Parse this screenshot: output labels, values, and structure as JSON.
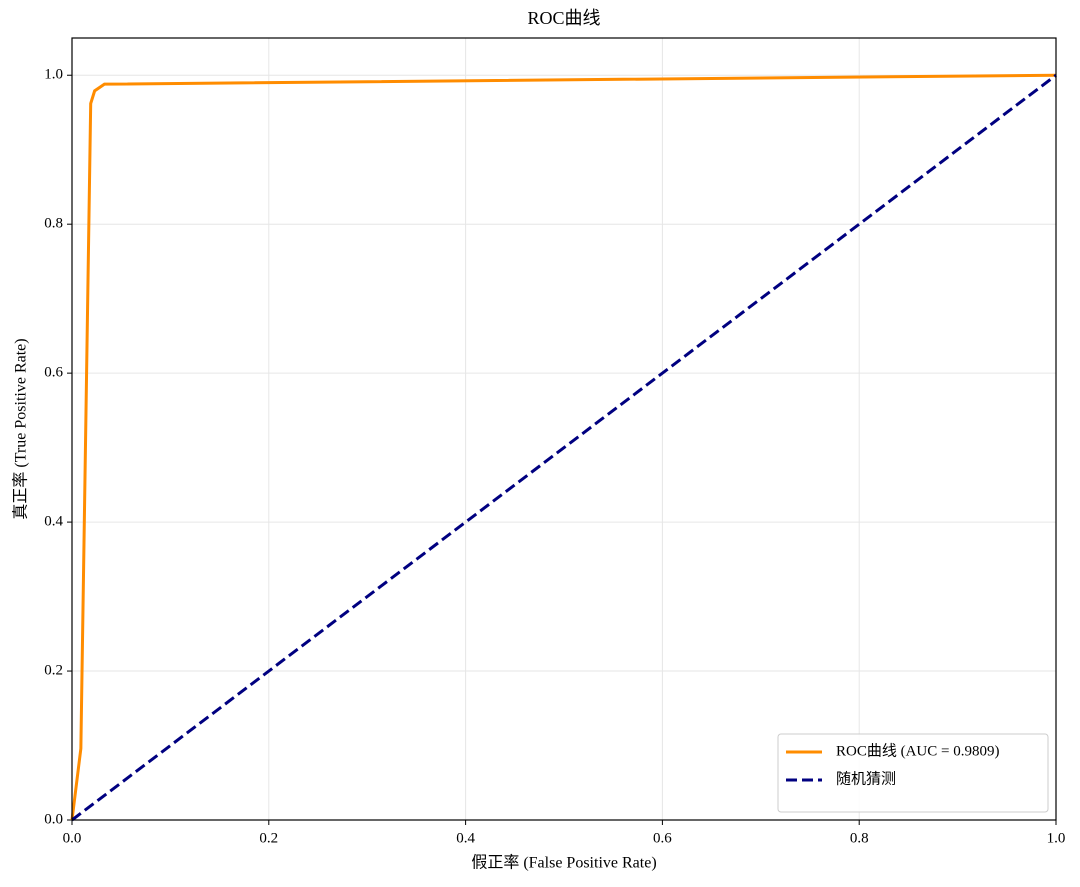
{
  "chart_data": {
    "type": "line",
    "title": "ROC曲线",
    "xlabel": "假正率 (False Positive Rate)",
    "ylabel": "真正率 (True Positive Rate)",
    "series": [
      {
        "name": "ROC曲线 (AUC = 0.9809)",
        "color": "#ff8c00",
        "style": "solid",
        "x": [
          0,
          0.009,
          0.019,
          0.023,
          0.033,
          1
        ],
        "values": [
          0,
          0.096,
          0.962,
          0.979,
          0.988,
          1
        ]
      },
      {
        "name": "随机猜测",
        "color": "#000080",
        "style": "dashed",
        "x": [
          0,
          1
        ],
        "values": [
          0,
          1
        ]
      }
    ],
    "xlim": [
      0,
      1
    ],
    "ylim": [
      0,
      1.05
    ],
    "xticks": [
      {
        "value": 0,
        "label": "0.0"
      },
      0.2,
      0.4,
      0.6,
      0.8,
      {
        "value": 1,
        "label": "1.0"
      }
    ],
    "yticks": [
      {
        "value": 0,
        "label": "0.0"
      },
      0.2,
      0.4,
      0.6,
      0.8,
      {
        "value": 1,
        "label": "1.0"
      }
    ],
    "grid": true,
    "legend": "lower right"
  }
}
